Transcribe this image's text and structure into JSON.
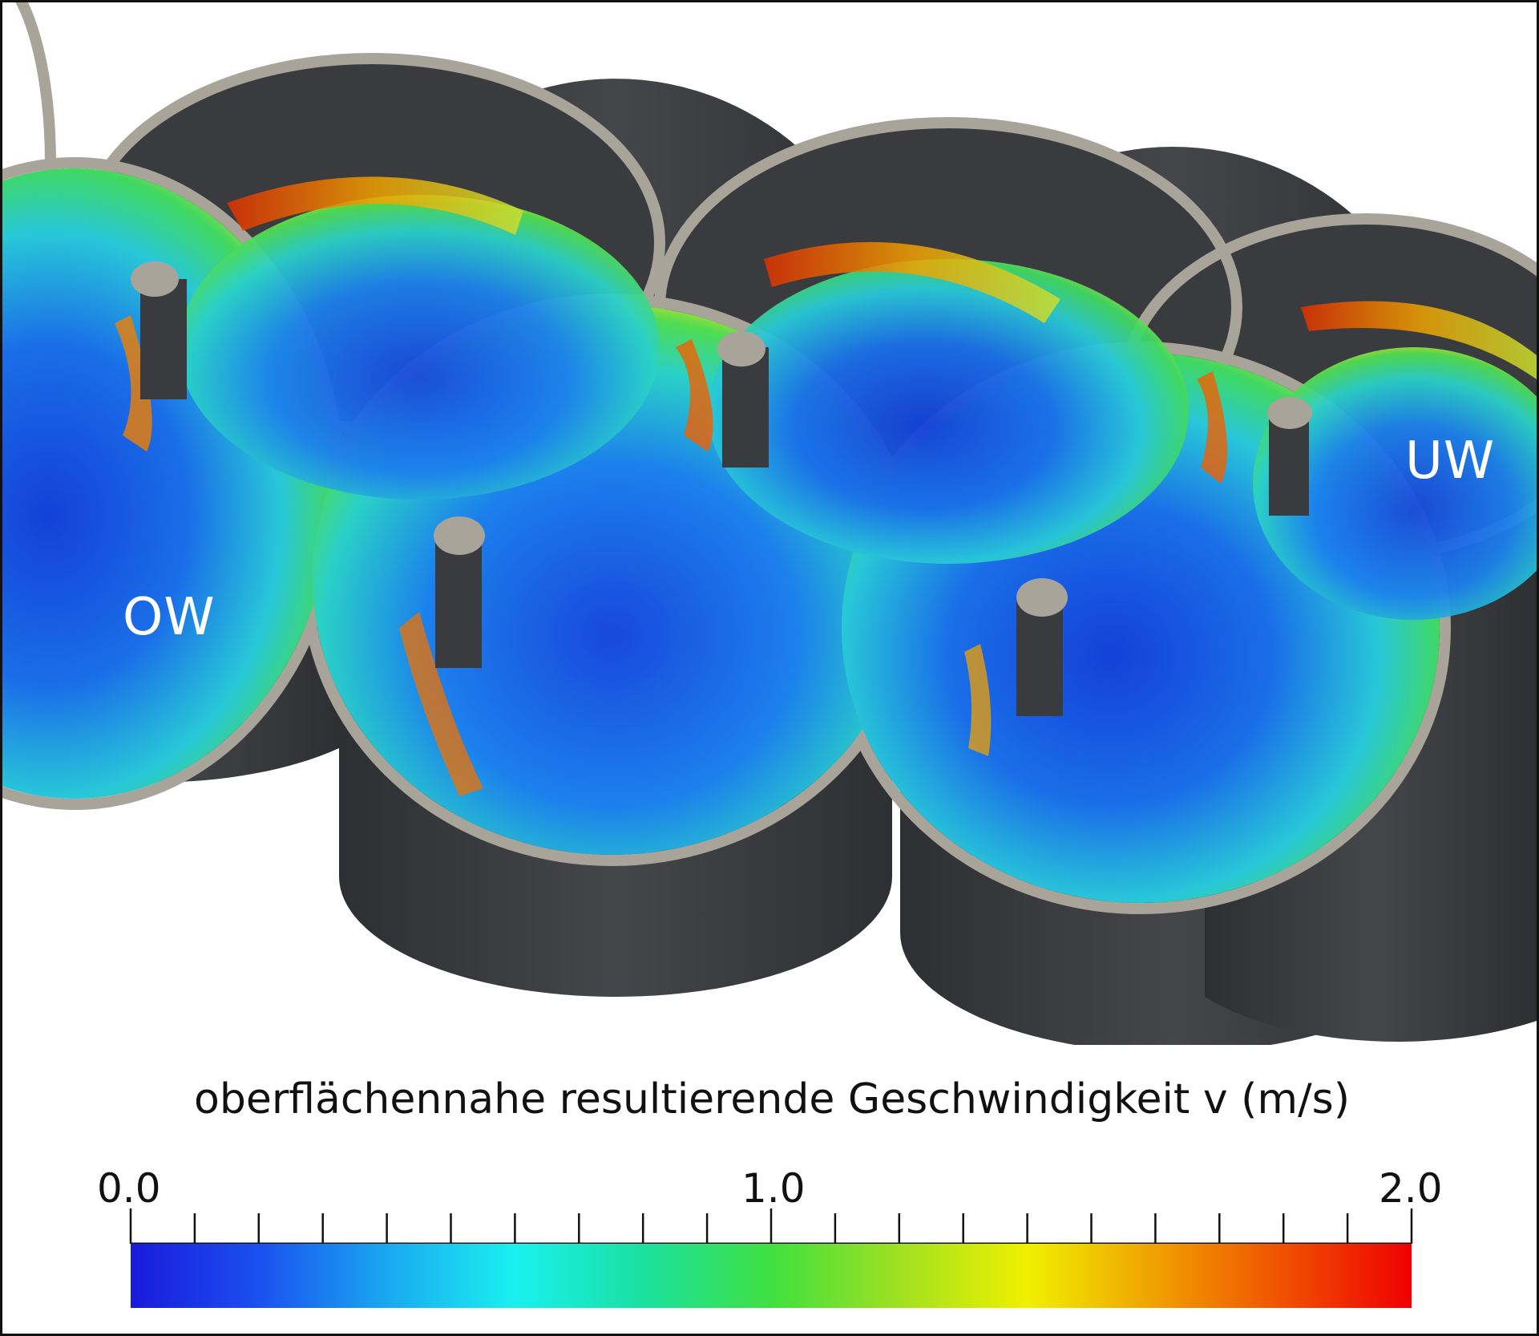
{
  "regions": {
    "upstream_label": "OW",
    "downstream_label": "UW"
  },
  "legend": {
    "title": "oberflächennahe resultierende Geschwindigkeit v (m/s)",
    "min_label": "0.0",
    "mid_label": "1.0",
    "max_label": "2.0",
    "range": [
      0.0,
      2.0
    ],
    "minor_ticks": 20,
    "colormap": [
      "#1a1adc",
      "#1a50f0",
      "#1aa8f0",
      "#1af0f0",
      "#1ae0a0",
      "#40e040",
      "#a0e020",
      "#f0f000",
      "#f0a000",
      "#f05000",
      "#f00000"
    ]
  },
  "colors": {
    "wall": "#3a3b3e",
    "rim": "#a8a49a",
    "frame": "#111111"
  }
}
